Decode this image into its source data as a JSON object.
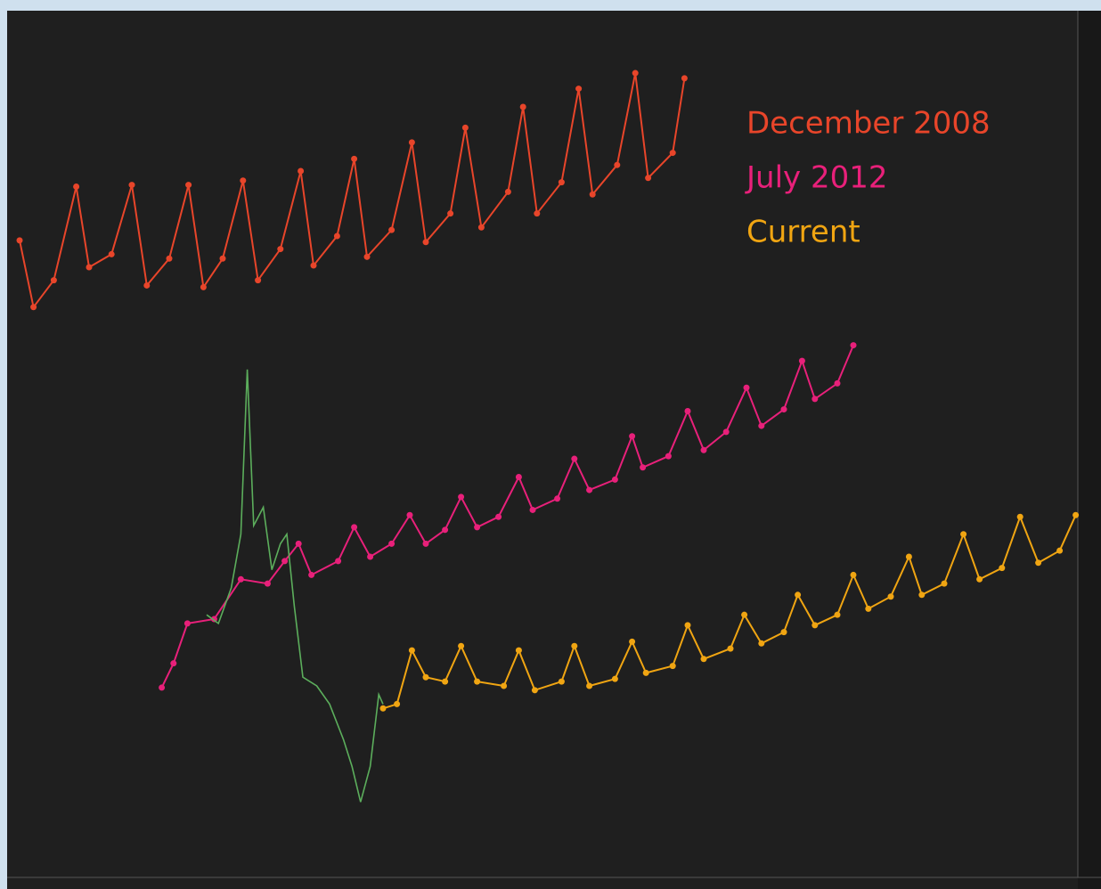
{
  "chart_data": {
    "type": "line",
    "legend": "upper right",
    "xlim": [
      0,
      100
    ],
    "ylim": [
      0,
      100
    ],
    "series": [
      {
        "name": "December 2008",
        "color": "#e8452a",
        "markers": true,
        "x": [
          1.0,
          2.3,
          4.2,
          6.3,
          7.5,
          9.6,
          11.5,
          12.9,
          15.0,
          16.8,
          18.2,
          20.0,
          21.9,
          23.3,
          25.4,
          27.3,
          28.5,
          30.7,
          32.3,
          33.5,
          35.8,
          37.7,
          39.0,
          41.3,
          42.7,
          44.2,
          46.7,
          48.1,
          49.4,
          51.7,
          53.3,
          54.6,
          56.9,
          58.6,
          59.8,
          62.1,
          63.2
        ],
        "values": [
          73.5,
          65.8,
          68.9,
          79.7,
          70.4,
          71.9,
          79.9,
          68.3,
          71.4,
          79.9,
          68.1,
          71.4,
          80.4,
          68.9,
          72.5,
          81.5,
          70.6,
          74.0,
          82.9,
          71.6,
          74.7,
          84.8,
          73.3,
          76.6,
          86.5,
          75.0,
          79.1,
          88.9,
          76.6,
          80.2,
          91.0,
          78.8,
          82.2,
          92.8,
          80.7,
          83.6,
          92.2
        ]
      },
      {
        "name": "July 2012",
        "color": "#e8207a",
        "markers": true,
        "x": [
          14.3,
          15.4,
          16.7,
          19.2,
          21.7,
          24.2,
          25.8,
          27.1,
          28.3,
          30.8,
          32.3,
          33.8,
          35.8,
          37.5,
          39.0,
          40.8,
          42.3,
          43.8,
          45.8,
          47.7,
          49.0,
          51.3,
          52.9,
          54.3,
          56.7,
          58.3,
          59.3,
          61.7,
          63.5,
          65.0,
          67.1,
          69.0,
          70.4,
          72.5,
          74.2,
          75.4,
          77.5,
          79.0
        ],
        "values": [
          21.9,
          24.7,
          29.3,
          29.8,
          34.4,
          33.9,
          36.5,
          38.5,
          34.9,
          36.5,
          40.4,
          37.0,
          38.5,
          41.8,
          38.5,
          40.1,
          43.9,
          40.4,
          41.6,
          46.2,
          42.4,
          43.7,
          48.3,
          44.7,
          45.9,
          50.9,
          47.3,
          48.6,
          53.8,
          49.3,
          51.4,
          56.5,
          52.1,
          54.0,
          59.6,
          55.2,
          57.0,
          61.4
        ]
      },
      {
        "name": "Current",
        "color": "#f0a512",
        "markers": true,
        "x": [
          35.0,
          36.3,
          37.7,
          39.0,
          40.8,
          42.3,
          43.8,
          46.3,
          47.7,
          49.2,
          51.7,
          52.9,
          54.3,
          56.7,
          58.3,
          59.6,
          62.1,
          63.5,
          65.0,
          67.5,
          68.8,
          70.4,
          72.5,
          73.8,
          75.4,
          77.5,
          79.0,
          80.4,
          82.5,
          84.2,
          85.4,
          87.5,
          89.3,
          90.8,
          92.9,
          94.6,
          96.3,
          98.3,
          99.8
        ],
        "values": [
          19.5,
          20.0,
          26.2,
          23.1,
          22.6,
          26.7,
          22.6,
          22.1,
          26.2,
          21.6,
          22.6,
          26.7,
          22.1,
          22.9,
          27.2,
          23.6,
          24.4,
          29.1,
          25.2,
          26.4,
          30.3,
          27.0,
          28.3,
          32.6,
          29.1,
          30.3,
          34.9,
          31.0,
          32.4,
          37.0,
          32.6,
          33.9,
          39.6,
          34.4,
          35.7,
          41.6,
          36.3,
          37.7,
          41.8
        ]
      },
      {
        "color": "#5cae5c",
        "markers": false,
        "x": [
          18.5,
          19.6,
          20.8,
          21.7,
          22.3,
          22.9,
          23.8,
          24.6,
          25.4,
          26.0,
          26.7,
          27.5,
          28.8,
          30.0,
          31.3,
          32.1,
          32.9,
          33.8,
          34.6,
          35.0
        ],
        "values": [
          30.3,
          29.3,
          33.4,
          39.6,
          58.6,
          40.6,
          42.7,
          35.5,
          38.5,
          39.6,
          31.3,
          23.1,
          22.1,
          20.0,
          15.9,
          12.8,
          8.7,
          12.8,
          21.1,
          20.0
        ]
      }
    ]
  }
}
